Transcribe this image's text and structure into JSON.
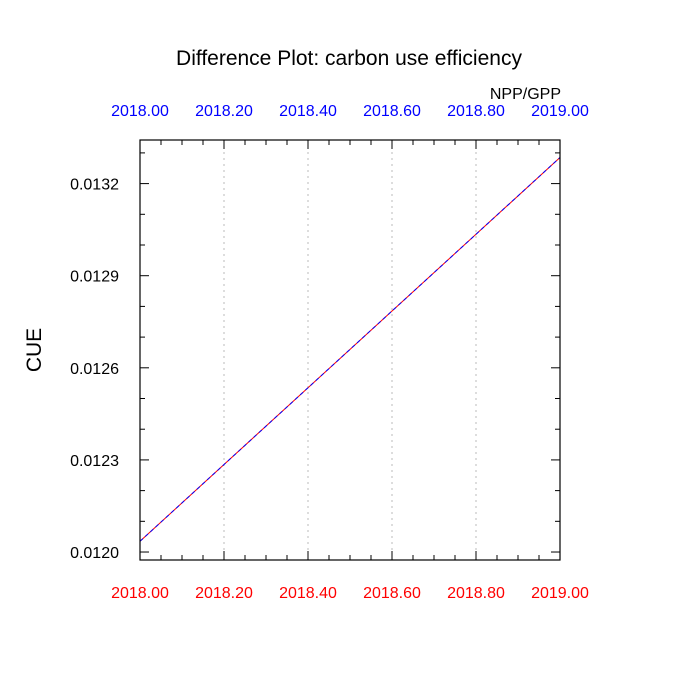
{
  "chart_data": {
    "type": "line",
    "title": "Difference Plot: carbon use efficiency",
    "subtitle": "NPP/GPP",
    "ylabel": "CUE",
    "xlabel": "",
    "x_ticks": [
      2018.0,
      2018.2,
      2018.4,
      2018.6,
      2018.8,
      2019.0
    ],
    "x_tick_labels": [
      "2018.00",
      "2018.20",
      "2018.40",
      "2018.60",
      "2018.80",
      "2019.00"
    ],
    "y_ticks": [
      0.012,
      0.0123,
      0.0126,
      0.0129,
      0.0132
    ],
    "y_tick_labels": [
      "0.0120",
      "0.0123",
      "0.0126",
      "0.0129",
      "0.0132"
    ],
    "xlim": [
      2018.0,
      2019.0
    ],
    "ylim": [
      0.011974,
      0.013342
    ],
    "grid": "vertical-dotted",
    "series": [
      {
        "x": [
          2018.0,
          2019.0
        ],
        "values": [
          0.012035,
          0.013285
        ],
        "color": "#ff0000",
        "dash": "solid"
      },
      {
        "x": [
          2018.0,
          2019.0
        ],
        "values": [
          0.012035,
          0.013285
        ],
        "color": "#0000ff",
        "dash": "dashed"
      }
    ],
    "colors": {
      "top_tick_labels": "#0000ff",
      "bottom_tick_labels": "#ff0000",
      "axis": "#000000",
      "grid": "#bbbbbb"
    }
  }
}
